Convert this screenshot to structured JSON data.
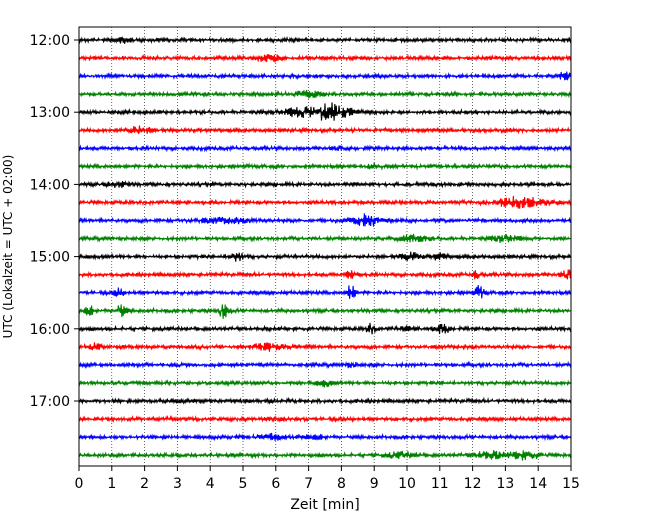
{
  "chart_data": {
    "type": "line",
    "title": "",
    "xlabel": "Zeit  [min]",
    "ylabel": "UTC (Lokalzeit = UTC + 02:00)",
    "xlim": [
      0,
      15
    ],
    "x_ticks": [
      0,
      1,
      2,
      3,
      4,
      5,
      6,
      7,
      8,
      9,
      10,
      11,
      12,
      13,
      14,
      15
    ],
    "x_tick_labels": [
      "0",
      "1",
      "2",
      "3",
      "4",
      "5",
      "6",
      "7",
      "8",
      "9",
      "10",
      "11",
      "12",
      "13",
      "14",
      "15"
    ],
    "y_tick_labels": [
      "12:00",
      "13:00",
      "14:00",
      "15:00",
      "16:00",
      "17:00"
    ],
    "y_tick_rows": [
      0,
      4,
      8,
      12,
      16,
      20
    ],
    "grid_x": true,
    "grid_style": "dotted",
    "row_colors": [
      "#000000",
      "#ff0000",
      "#0000ff",
      "#008000"
    ],
    "rows": [
      {
        "time": "12:00",
        "events": [
          {
            "x": 1.4,
            "amp": 0.25,
            "w": 0.15
          }
        ]
      },
      {
        "time": "12:15",
        "events": [
          {
            "x": 5.8,
            "amp": 0.35,
            "w": 0.3
          }
        ]
      },
      {
        "time": "12:30",
        "events": [
          {
            "x": 14.9,
            "amp": 0.4,
            "w": 0.2
          }
        ]
      },
      {
        "time": "12:45",
        "events": [
          {
            "x": 7.0,
            "amp": 0.3,
            "w": 0.3
          }
        ]
      },
      {
        "time": "13:00",
        "events": [
          {
            "x": 7.6,
            "amp": 0.9,
            "w": 0.45
          },
          {
            "x": 6.6,
            "amp": 0.35,
            "w": 0.3
          }
        ]
      },
      {
        "time": "13:15",
        "events": [
          {
            "x": 1.8,
            "amp": 0.35,
            "w": 0.3
          }
        ]
      },
      {
        "time": "13:30",
        "events": [
          {
            "x": 8.0,
            "amp": 0.15,
            "w": 0.2
          }
        ]
      },
      {
        "time": "13:45",
        "events": [
          {
            "x": 9.0,
            "amp": 0.3,
            "w": 0.15
          }
        ]
      },
      {
        "time": "14:00",
        "events": [
          {
            "x": 1.2,
            "amp": 0.25,
            "w": 0.25
          }
        ]
      },
      {
        "time": "14:15",
        "events": [
          {
            "x": 13.4,
            "amp": 0.55,
            "w": 0.5
          }
        ]
      },
      {
        "time": "14:30",
        "events": [
          {
            "x": 8.8,
            "amp": 0.6,
            "w": 0.3
          },
          {
            "x": 4.5,
            "amp": 0.25,
            "w": 0.6
          }
        ]
      },
      {
        "time": "14:45",
        "events": [
          {
            "x": 10.2,
            "amp": 0.35,
            "w": 0.3
          },
          {
            "x": 13.0,
            "amp": 0.3,
            "w": 0.3
          }
        ]
      },
      {
        "time": "15:00",
        "events": [
          {
            "x": 4.8,
            "amp": 0.4,
            "w": 0.2
          },
          {
            "x": 10.1,
            "amp": 0.45,
            "w": 0.2
          },
          {
            "x": 11.0,
            "amp": 0.4,
            "w": 0.15
          }
        ]
      },
      {
        "time": "15:15",
        "events": [
          {
            "x": 8.3,
            "amp": 0.55,
            "w": 0.1
          },
          {
            "x": 12.1,
            "amp": 0.4,
            "w": 0.1
          },
          {
            "x": 14.9,
            "amp": 0.45,
            "w": 0.15
          }
        ]
      },
      {
        "time": "15:30",
        "events": [
          {
            "x": 8.3,
            "amp": 1.0,
            "w": 0.08
          },
          {
            "x": 12.2,
            "amp": 0.7,
            "w": 0.1
          },
          {
            "x": 1.2,
            "amp": 0.5,
            "w": 0.1
          }
        ]
      },
      {
        "time": "15:45",
        "events": [
          {
            "x": 4.4,
            "amp": 0.9,
            "w": 0.1
          },
          {
            "x": 1.3,
            "amp": 0.7,
            "w": 0.1
          },
          {
            "x": 0.3,
            "amp": 0.6,
            "w": 0.1
          }
        ]
      },
      {
        "time": "16:00",
        "events": [
          {
            "x": 8.9,
            "amp": 0.55,
            "w": 0.1
          },
          {
            "x": 11.1,
            "amp": 0.4,
            "w": 0.2
          },
          {
            "x": 10.0,
            "amp": 0.2,
            "w": 0.2
          }
        ]
      },
      {
        "time": "16:15",
        "events": [
          {
            "x": 5.7,
            "amp": 0.35,
            "w": 0.3
          },
          {
            "x": 0.5,
            "amp": 0.3,
            "w": 0.15
          }
        ]
      },
      {
        "time": "16:30",
        "events": [
          {
            "x": 8.3,
            "amp": 0.2,
            "w": 0.15
          }
        ]
      },
      {
        "time": "16:45",
        "events": [
          {
            "x": 7.5,
            "amp": 0.35,
            "w": 0.15
          }
        ]
      },
      {
        "time": "17:00",
        "events": [
          {
            "x": 3.0,
            "amp": 0.15,
            "w": 0.2
          }
        ]
      },
      {
        "time": "17:15",
        "events": [
          {
            "x": 6.0,
            "amp": 0.1,
            "w": 0.2
          }
        ]
      },
      {
        "time": "17:30",
        "events": [
          {
            "x": 5.8,
            "amp": 0.3,
            "w": 0.3
          },
          {
            "x": 7.2,
            "amp": 0.25,
            "w": 0.2
          }
        ]
      },
      {
        "time": "17:45",
        "events": [
          {
            "x": 12.5,
            "amp": 0.4,
            "w": 0.3
          },
          {
            "x": 13.6,
            "amp": 0.45,
            "w": 0.3
          },
          {
            "x": 9.8,
            "amp": 0.3,
            "w": 0.3
          }
        ]
      }
    ]
  }
}
